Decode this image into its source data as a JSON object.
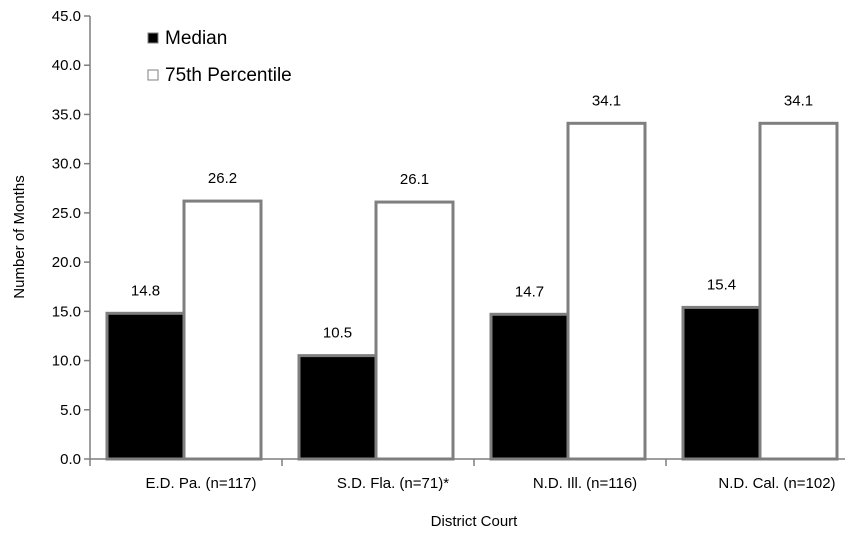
{
  "chart_data": {
    "type": "bar",
    "categories": [
      "E.D. Pa. (n=117)",
      "S.D. Fla. (n=71)*",
      "N.D. Ill. (n=116)",
      "N.D. Cal. (n=102)"
    ],
    "series": [
      {
        "name": "Median",
        "values": [
          14.8,
          10.5,
          14.7,
          15.4
        ],
        "color": "#000000"
      },
      {
        "name": "75th Percentile",
        "values": [
          26.2,
          26.1,
          34.1,
          34.1
        ],
        "color": "#ffffff"
      }
    ],
    "data_labels": [
      [
        "14.8",
        "10.5",
        "14.7",
        "15.4"
      ],
      [
        "26.2",
        "26.1",
        "34.1",
        "34.1"
      ]
    ],
    "xlabel": "District Court",
    "ylabel": "Number of Months",
    "ylim": [
      0,
      45
    ],
    "yticks": [
      "0.0",
      "5.0",
      "10.0",
      "15.0",
      "20.0",
      "25.0",
      "30.0",
      "35.0",
      "40.0",
      "45.0"
    ],
    "grid": false,
    "legend_position": "top-left",
    "axis_color": "#7f7f7f",
    "bar_edge_color": "#7f7f7f"
  }
}
